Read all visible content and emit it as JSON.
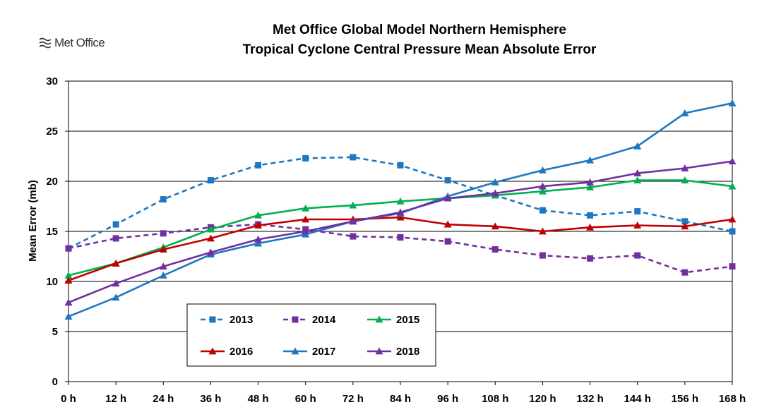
{
  "logo": {
    "text": "Met Office"
  },
  "chart_data": {
    "type": "line",
    "title": [
      "Met Office Global Model Northern Hemisphere",
      "Tropical Cyclone Central Pressure Mean Absolute Error"
    ],
    "xlabel": "",
    "ylabel": "Mean Error (mb)",
    "categories": [
      "0 h",
      "12 h",
      "24 h",
      "36 h",
      "48 h",
      "60 h",
      "72 h",
      "84 h",
      "96 h",
      "108 h",
      "120 h",
      "132 h",
      "144 h",
      "156 h",
      "168 h"
    ],
    "ylim": [
      0,
      30
    ],
    "yticks": [
      0,
      5,
      10,
      15,
      20,
      25,
      30
    ],
    "grid": "horizontal",
    "legend_position": "inside-bottom-left",
    "series": [
      {
        "name": "2013",
        "color": "#1F77BF",
        "dash": "dashed",
        "marker": "square",
        "values": [
          13.3,
          15.7,
          18.2,
          20.1,
          21.6,
          22.3,
          22.4,
          21.6,
          20.1,
          18.6,
          17.1,
          16.6,
          17.0,
          16.0,
          15.0
        ]
      },
      {
        "name": "2014",
        "color": "#7030A0",
        "dash": "dashed",
        "marker": "square",
        "values": [
          13.3,
          14.3,
          14.8,
          15.4,
          15.7,
          15.2,
          14.5,
          14.4,
          14.0,
          13.2,
          12.6,
          12.3,
          12.6,
          10.9,
          11.5
        ]
      },
      {
        "name": "2015",
        "color": "#00B050",
        "dash": "solid",
        "marker": "triangle",
        "values": [
          10.6,
          11.8,
          13.4,
          15.2,
          16.6,
          17.3,
          17.6,
          18.0,
          18.3,
          18.6,
          19.0,
          19.4,
          20.1,
          20.1,
          19.5
        ]
      },
      {
        "name": "2016",
        "color": "#C00000",
        "dash": "solid",
        "marker": "triangle",
        "values": [
          10.1,
          11.8,
          13.2,
          14.3,
          15.6,
          16.2,
          16.2,
          16.4,
          15.7,
          15.5,
          15.0,
          15.4,
          15.6,
          15.5,
          16.2
        ]
      },
      {
        "name": "2017",
        "color": "#1F77BF",
        "dash": "solid",
        "marker": "triangle",
        "values": [
          6.5,
          8.4,
          10.6,
          12.7,
          13.8,
          14.7,
          16.0,
          16.8,
          18.5,
          19.9,
          21.1,
          22.1,
          23.5,
          26.8,
          27.8
        ]
      },
      {
        "name": "2018",
        "color": "#7030A0",
        "dash": "solid",
        "marker": "triangle",
        "values": [
          7.9,
          9.8,
          11.5,
          12.9,
          14.2,
          15.0,
          16.0,
          16.9,
          18.3,
          18.8,
          19.5,
          19.9,
          20.8,
          21.3,
          22.0
        ]
      }
    ]
  }
}
